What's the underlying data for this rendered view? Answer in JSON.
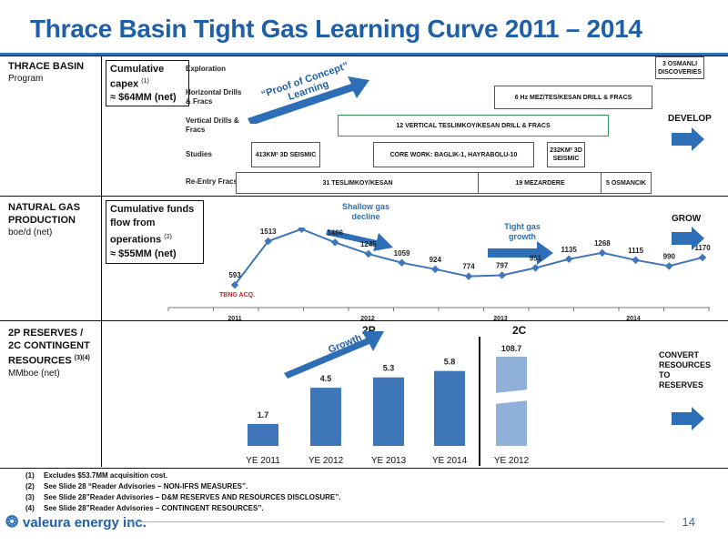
{
  "title": "Thrace Basin Tight Gas Learning Curve 2011 – 2014",
  "panel1": {
    "header": "THRACE BASIN",
    "sub": "Program",
    "box_line1": "Cumulative",
    "box_line2": "capex",
    "box_sup": "(1)",
    "box_line3": "≈ $64MM (net)",
    "rows": {
      "exploration": "Exploration",
      "horizontal": "Horizontal Drills & Fracs",
      "vertical": "Vertical Drills & Fracs",
      "studies": "Studies",
      "reentry": "Re-Entry Fracs"
    },
    "arrow_text": "“Proof of Concept” Learning",
    "bars": {
      "osmanli_disc": "3 OSMANLI DISCOVERIES",
      "horiz": "6 Hz MEZ/TES/KESAN DRILL & FRACS",
      "vert": "12 VERTICAL TESLIMKOY/KESAN DRILL & FRACS",
      "seismic413": "413KM² 3D SEISMIC",
      "corework": "CORE WORK: BAGLIK-1, HAYRABOLU-10",
      "seismic232": "232KM² 3D SEISMIC",
      "reentry1": "31 TESLIMKOY/KESAN",
      "reentry2": "19 MEZARDERE",
      "reentry3": "5 OSMANCIK"
    },
    "right_label": "DEVELOP"
  },
  "panel2": {
    "header_line1": "NATURAL GAS",
    "header_line2": "PRODUCTION",
    "sub": "boe/d (net)",
    "box_line1": "Cumulative funds",
    "box_line2": "flow from",
    "box_line3": "operations",
    "box_sup": "(2)",
    "box_line4": "≈ $55MM (net)",
    "annot1": "Shallow gas decline",
    "annot2": "Tight gas growth",
    "tbng": "TBNG ACQ.",
    "right_label": "GROW"
  },
  "panel3": {
    "header_line1": "2P RESERVES /",
    "header_line2": "2C CONTINGENT",
    "header_line3": "RESOURCES",
    "header_sup": "(3)(4)",
    "sub": "MMboe (net)",
    "label_2p": "2P",
    "label_2c": "2C",
    "growth": "Growth",
    "right_label": "CONVERT RESOURCES TO RESERVES"
  },
  "chart_data": [
    {
      "type": "line",
      "x_ticks": [
        "2011",
        "2012",
        "2013",
        "2014"
      ],
      "series": [
        {
          "values": [
            593,
            1513,
            1767,
            1486,
            1245,
            1059,
            924,
            774,
            797,
            951,
            1135,
            1268,
            1115,
            990,
            1170
          ]
        }
      ]
    },
    {
      "type": "bar",
      "categories": [
        "YE 2011",
        "YE 2012",
        "YE 2013",
        "YE 2014"
      ],
      "values": [
        1.7,
        4.5,
        5.3,
        5.8
      ],
      "extra": {
        "category": "YE 2012",
        "value": 108.7
      }
    }
  ],
  "footnotes": [
    {
      "n": "(1)",
      "text": "Excludes $53.7MM acquisition cost."
    },
    {
      "n": "(2)",
      "text": "See Slide 28 “Reader Advisories – NON-IFRS MEASURES”."
    },
    {
      "n": "(3)",
      "text": "See Slide 28”Reader Advisories – D&M RESERVES AND RESOURCES DISCLOSURE”."
    },
    {
      "n": "(4)",
      "text": "See Slide 28”Reader Advisories – CONTINGENT RESOURCES”."
    }
  ],
  "logo": "valeura energy inc.",
  "page_number": "14",
  "colors": {
    "brand_blue": "#1f5fa8",
    "bar_blue": "#3e76b9",
    "light_bar": "#8fb0d8",
    "arrow": "#2d6eb6",
    "green": "#2f9a55",
    "red": "#cc2222"
  }
}
